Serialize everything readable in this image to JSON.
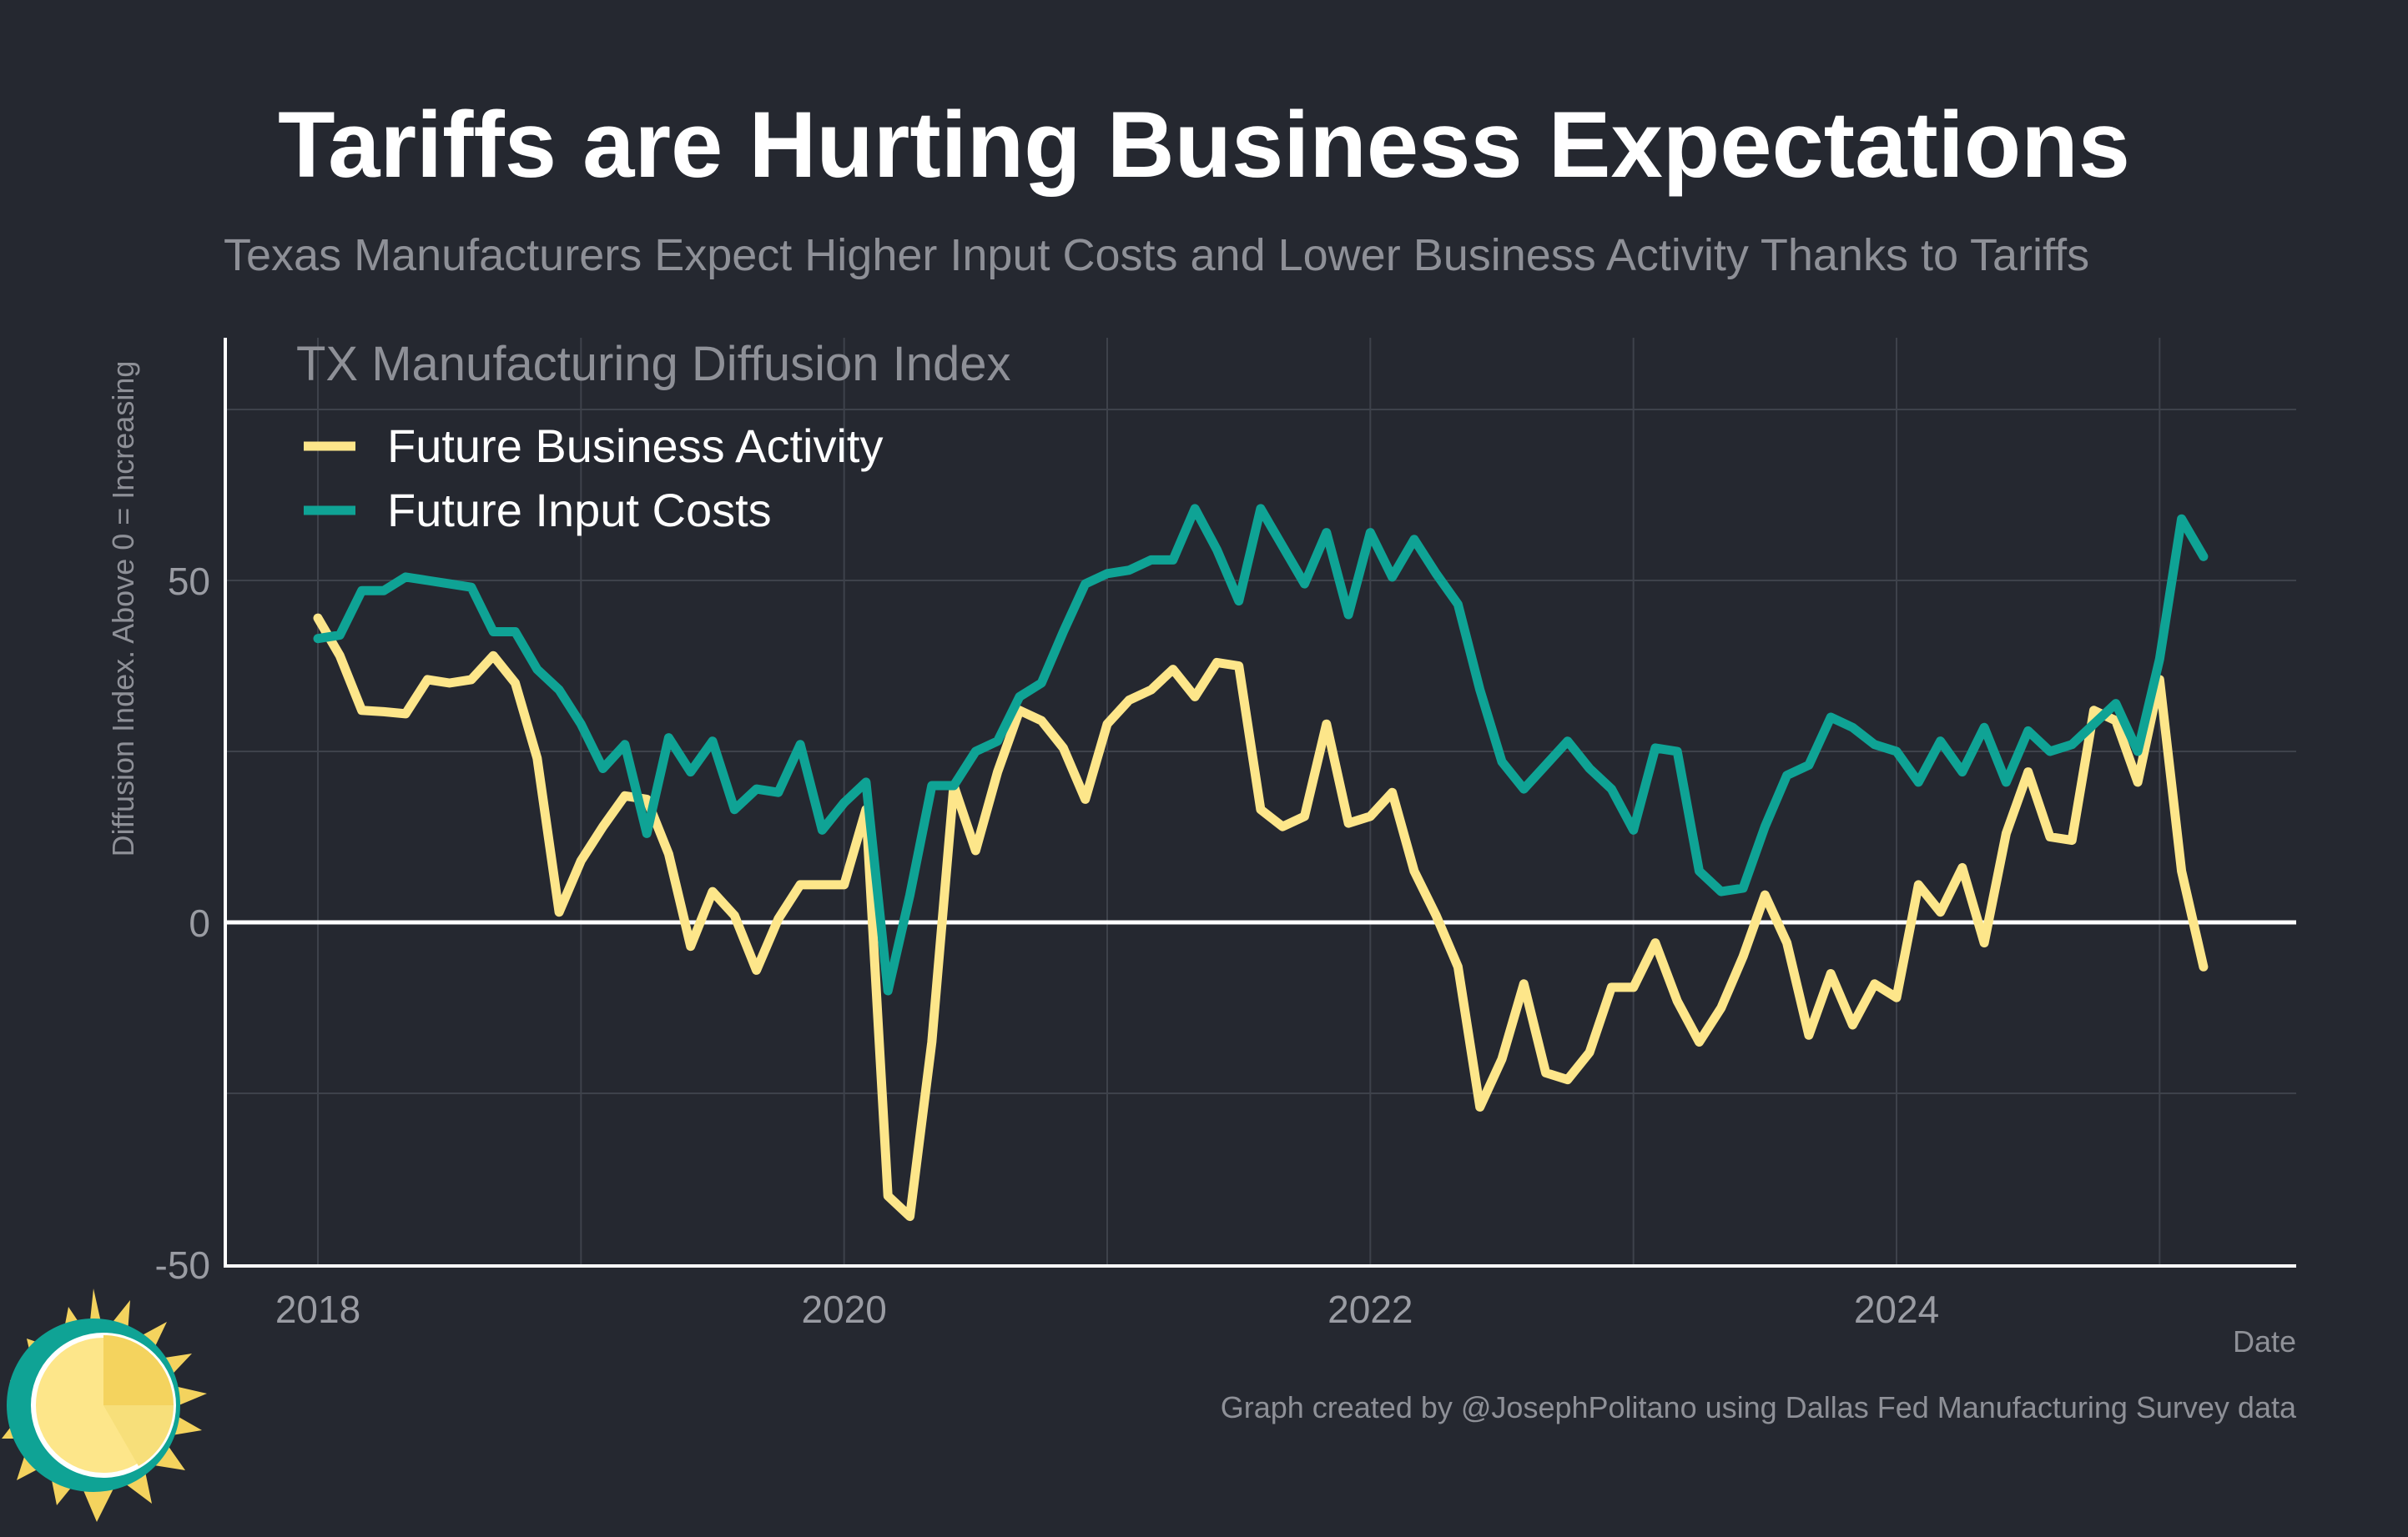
{
  "header": {
    "title": "Tariffs are Hurting Business Expectations",
    "subtitle": "Texas Manufacturers Expect Higher Input Costs and Lower Business Activity Thanks to Tariffs"
  },
  "footer": {
    "caption": "Graph created by @JosephPolitano using Dallas Fed Manufacturing Survey data"
  },
  "logo": {
    "icon": "sun-logo-icon"
  },
  "colors": {
    "background": "#252830",
    "grid": "#3e424b",
    "axis": "#ffffff",
    "zero_line": "#ffffff",
    "business_activity": "#fde68a",
    "input_costs": "#0fa395"
  },
  "chart_data": {
    "type": "line",
    "title": "",
    "xlabel": "Date",
    "ylabel": "Diffusion Index. Above 0 = Increasing",
    "legend_title": "TX Manufacturing Diffusion Index",
    "legend_position": "top-left",
    "grid": true,
    "xlim": [
      2017.65,
      2025.5
    ],
    "ylim": [
      -50,
      80
    ],
    "x_ticks": [
      2018,
      2020,
      2022,
      2024
    ],
    "x_tick_labels": [
      "2018",
      "2020",
      "2022",
      "2024"
    ],
    "y_ticks": [
      -50,
      0,
      50
    ],
    "y_tick_labels": [
      "-50",
      "0",
      "50"
    ],
    "x_start": 2018.0,
    "x_step_months": 1,
    "series": [
      {
        "name": "Future Business Activity",
        "color": "#fde68a",
        "values": [
          44.5,
          39,
          31,
          30.8,
          30.5,
          35.5,
          35,
          35.5,
          39,
          35,
          24,
          1.5,
          9,
          14,
          18.5,
          18,
          10,
          -3.5,
          4.5,
          1,
          -7,
          0.5,
          5.5,
          5.5,
          5.5,
          16.5,
          -40,
          -43,
          -17.5,
          20,
          10.5,
          22,
          31,
          29.5,
          25.5,
          18,
          29,
          32.5,
          34,
          37,
          33,
          38,
          37.5,
          16.5,
          14,
          15.5,
          29,
          14.5,
          15.5,
          19,
          7.5,
          1,
          -6.5,
          -27,
          -20,
          -9,
          -22,
          -23,
          -19,
          -9.5,
          -9.5,
          -3,
          -11.5,
          -17.5,
          -12.5,
          -5,
          4,
          -3,
          -16.5,
          -7.5,
          -15,
          -9,
          -11,
          5.5,
          1.5,
          8,
          -3,
          13,
          22,
          12.5,
          12,
          31,
          29.5,
          20.5,
          35.5,
          7.5,
          -6.5
        ]
      },
      {
        "name": "Future Input Costs",
        "color": "#0fa395",
        "values": [
          41.5,
          42,
          48.5,
          48.5,
          50.5,
          50,
          49.5,
          49,
          42.5,
          42.5,
          37,
          34,
          29,
          22.5,
          26,
          13,
          27,
          22,
          26.5,
          16.5,
          19.5,
          19,
          26,
          13.5,
          17.5,
          20.5,
          -10,
          4,
          20,
          20,
          25,
          26.5,
          33,
          35,
          42.5,
          49.5,
          51,
          51.5,
          53,
          53,
          60.5,
          54.5,
          47,
          60.5,
          55,
          49.5,
          57,
          45,
          57,
          50.5,
          56,
          51,
          46.5,
          34,
          23.5,
          19.5,
          23,
          26.5,
          22.5,
          19.5,
          13.5,
          25.5,
          25,
          7.5,
          4.5,
          5,
          14,
          21.5,
          23,
          30,
          28.5,
          26,
          25,
          20.5,
          26.5,
          22,
          28.5,
          20.5,
          28,
          25,
          26,
          29,
          32,
          25,
          38.5,
          59,
          53.5
        ]
      }
    ]
  }
}
